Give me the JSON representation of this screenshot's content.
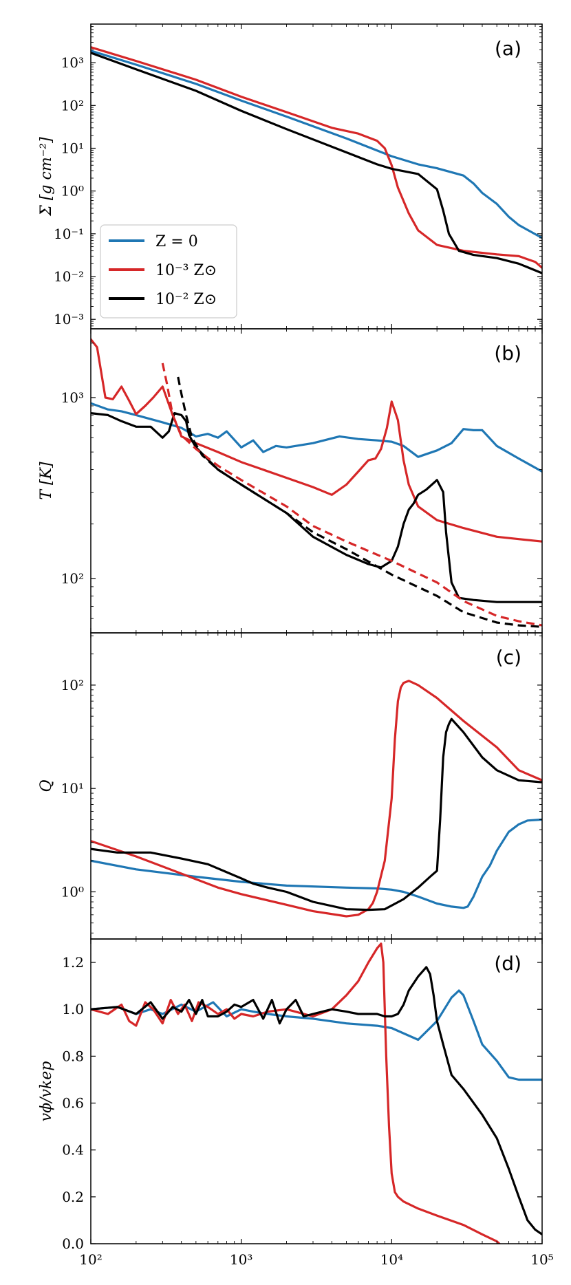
{
  "colors": {
    "zero": "#1f77b4",
    "m3": "#d62728",
    "m2": "#000000"
  },
  "legend": [
    {
      "key": "zero",
      "label": "Z = 0"
    },
    {
      "key": "m3",
      "label": "10⁻³ Z⊙"
    },
    {
      "key": "m2",
      "label": "10⁻² Z⊙"
    }
  ],
  "x_ticks": [
    "10²",
    "10³",
    "10⁴",
    "10⁵"
  ],
  "chart_data": [
    {
      "panel": "(a)",
      "type": "line",
      "ylabel": "Σ [g cm⁻²]",
      "yscale": "log",
      "xlim": [
        100,
        100000
      ],
      "ylim": [
        0.0006,
        8000
      ],
      "y_ticks": [
        "10⁻³",
        "10⁻²",
        "10⁻¹",
        "10⁰",
        "10¹",
        "10²",
        "10³"
      ],
      "series": [
        {
          "key": "zero",
          "name": "Z = 0",
          "x": [
            100,
            200,
            500,
            1000,
            2000,
            5000,
            10000,
            15000,
            20000,
            30000,
            35000,
            40000,
            50000,
            60000,
            70000,
            100000
          ],
          "y": [
            1900,
            900,
            320,
            130,
            55,
            17,
            6.5,
            4.2,
            3.4,
            2.3,
            1.5,
            0.9,
            0.5,
            0.25,
            0.16,
            0.08
          ]
        },
        {
          "key": "m3",
          "name": "10⁻³ Z⊙",
          "x": [
            100,
            200,
            500,
            1000,
            2000,
            4000,
            6000,
            8000,
            9000,
            10000,
            11000,
            13000,
            15000,
            20000,
            30000,
            50000,
            70000,
            90000,
            100000
          ],
          "y": [
            2300,
            1100,
            400,
            160,
            70,
            30,
            22,
            15,
            10,
            4,
            1.2,
            0.3,
            0.12,
            0.055,
            0.04,
            0.033,
            0.03,
            0.022,
            0.016
          ]
        },
        {
          "key": "m2",
          "name": "10⁻² Z⊙",
          "x": [
            100,
            200,
            500,
            1000,
            2000,
            5000,
            8000,
            10000,
            15000,
            20000,
            22000,
            24000,
            28000,
            35000,
            50000,
            70000,
            100000
          ],
          "y": [
            1700,
            700,
            220,
            75,
            28,
            8,
            4.2,
            3.3,
            2.5,
            1.1,
            0.35,
            0.1,
            0.04,
            0.032,
            0.027,
            0.02,
            0.012
          ]
        }
      ]
    },
    {
      "panel": "(b)",
      "type": "line",
      "ylabel": "T [K]",
      "yscale": "log",
      "xlim": [
        100,
        100000
      ],
      "ylim": [
        50,
        2400
      ],
      "y_ticks": [
        "10²",
        "10³"
      ],
      "series": [
        {
          "key": "zero",
          "name": "Z = 0",
          "x": [
            100,
            130,
            160,
            200,
            300,
            400,
            500,
            600,
            700,
            800,
            1000,
            1200,
            1400,
            1700,
            2000,
            3000,
            4500,
            6000,
            8000,
            10000,
            12000,
            15000,
            20000,
            25000,
            30000,
            35000,
            40000,
            50000,
            70000,
            100000
          ],
          "y": [
            930,
            860,
            840,
            800,
            730,
            680,
            610,
            630,
            600,
            650,
            530,
            580,
            500,
            540,
            530,
            560,
            610,
            590,
            580,
            570,
            540,
            470,
            510,
            560,
            670,
            660,
            660,
            540,
            460,
            390
          ]
        },
        {
          "key": "m3",
          "name": "10⁻³ Z⊙",
          "x": [
            100,
            110,
            125,
            140,
            160,
            180,
            200,
            230,
            260,
            300,
            350,
            400,
            500,
            700,
            1000,
            2000,
            3000,
            4000,
            5000,
            6000,
            7000,
            7800,
            8500,
            9300,
            10000,
            11000,
            12000,
            13000,
            15000,
            20000,
            30000,
            50000,
            70000,
            100000
          ],
          "y": [
            2100,
            1900,
            1000,
            980,
            1150,
            960,
            810,
            900,
            1000,
            1150,
            800,
            610,
            560,
            500,
            440,
            360,
            320,
            290,
            330,
            390,
            450,
            460,
            520,
            680,
            950,
            750,
            450,
            330,
            250,
            210,
            190,
            170,
            165,
            160
          ]
        },
        {
          "key": "m2",
          "name": "10⁻² Z⊙",
          "x": [
            100,
            130,
            160,
            200,
            250,
            300,
            330,
            360,
            400,
            430,
            450,
            500,
            700,
            1000,
            2000,
            3000,
            5000,
            7000,
            8500,
            10000,
            11000,
            12000,
            13000,
            14000,
            15000,
            17000,
            20000,
            22000,
            23000,
            25000,
            28000,
            35000,
            50000,
            70000,
            100000
          ],
          "y": [
            820,
            800,
            740,
            690,
            690,
            600,
            650,
            820,
            800,
            740,
            620,
            530,
            400,
            330,
            230,
            170,
            135,
            120,
            115,
            125,
            150,
            200,
            240,
            260,
            290,
            310,
            350,
            300,
            180,
            95,
            78,
            76,
            74,
            74,
            74
          ]
        },
        {
          "key": "m3",
          "name": "10⁻³ Z⊙ (dashed)",
          "style": "dashed",
          "x": [
            300,
            320,
            350,
            400,
            500,
            700,
            1000,
            2000,
            3000,
            5000,
            10000,
            20000,
            30000,
            50000,
            70000,
            100000
          ],
          "y": [
            1550,
            1200,
            800,
            620,
            520,
            420,
            350,
            250,
            195,
            160,
            125,
            95,
            75,
            62,
            58,
            55
          ]
        },
        {
          "key": "m2",
          "name": "10⁻² Z⊙ (dashed)",
          "style": "dashed",
          "x": [
            380,
            400,
            430,
            470,
            550,
            700,
            1000,
            2000,
            3000,
            5000,
            10000,
            20000,
            30000,
            50000,
            70000,
            100000
          ],
          "y": [
            1300,
            1050,
            800,
            600,
            480,
            400,
            330,
            230,
            180,
            145,
            105,
            80,
            65,
            57,
            55,
            54
          ]
        }
      ]
    },
    {
      "panel": "(c)",
      "type": "line",
      "ylabel": "Q",
      "yscale": "log",
      "xlim": [
        100,
        100000
      ],
      "ylim": [
        0.35,
        320
      ],
      "y_ticks": [
        "10⁰",
        "10¹",
        "10²"
      ],
      "series": [
        {
          "key": "zero",
          "name": "Z = 0",
          "x": [
            100,
            200,
            500,
            1000,
            2000,
            5000,
            8000,
            10000,
            12000,
            15000,
            20000,
            25000,
            30000,
            32000,
            35000,
            40000,
            45000,
            50000,
            60000,
            70000,
            80000,
            100000
          ],
          "y": [
            2.0,
            1.65,
            1.4,
            1.25,
            1.15,
            1.1,
            1.08,
            1.05,
            1.0,
            0.9,
            0.77,
            0.72,
            0.7,
            0.72,
            0.9,
            1.4,
            1.8,
            2.5,
            3.8,
            4.5,
            4.9,
            5.0
          ]
        },
        {
          "key": "m3",
          "name": "10⁻³ Z⊙",
          "x": [
            100,
            200,
            400,
            700,
            1000,
            2000,
            3000,
            5000,
            6000,
            7000,
            7500,
            8000,
            9000,
            10000,
            10500,
            11000,
            11500,
            12000,
            13000,
            15000,
            20000,
            30000,
            50000,
            70000,
            100000
          ],
          "y": [
            3.1,
            2.2,
            1.5,
            1.1,
            0.95,
            0.75,
            0.65,
            0.58,
            0.6,
            0.68,
            0.78,
            1.0,
            2.0,
            8.0,
            30.0,
            70.0,
            95.0,
            105.0,
            110.0,
            100.0,
            75.0,
            45.0,
            25.0,
            15.0,
            12.0
          ]
        },
        {
          "key": "m2",
          "name": "10⁻² Z⊙",
          "x": [
            100,
            150,
            250,
            400,
            600,
            800,
            1000,
            1200,
            1500,
            2000,
            3000,
            5000,
            7000,
            9000,
            12000,
            15000,
            18000,
            20000,
            21000,
            22000,
            23000,
            24000,
            25000,
            30000,
            40000,
            50000,
            70000,
            100000
          ],
          "y": [
            2.6,
            2.4,
            2.4,
            2.1,
            1.85,
            1.55,
            1.35,
            1.2,
            1.1,
            1.0,
            0.8,
            0.68,
            0.67,
            0.68,
            0.85,
            1.1,
            1.4,
            1.6,
            5.0,
            20.0,
            35.0,
            42.0,
            47.0,
            35.0,
            20.0,
            15.0,
            12.0,
            11.5
          ]
        }
      ]
    },
    {
      "panel": "(d)",
      "type": "line",
      "ylabel": "vϕ/vkep",
      "yscale": "linear",
      "xlim": [
        100,
        100000
      ],
      "ylim": [
        0,
        1.3
      ],
      "y_ticks": [
        "0.0",
        "0.2",
        "0.4",
        "0.6",
        "0.8",
        "1.0",
        "1.2"
      ],
      "y_tick_values": [
        0,
        0.2,
        0.4,
        0.6,
        0.8,
        1.0,
        1.2
      ],
      "series": [
        {
          "key": "zero",
          "name": "Z = 0",
          "x": [
            100,
            150,
            200,
            250,
            300,
            400,
            500,
            650,
            800,
            1000,
            1200,
            1500,
            2000,
            3000,
            5000,
            8000,
            10000,
            15000,
            20000,
            25000,
            28000,
            30000,
            35000,
            40000,
            50000,
            60000,
            70000,
            100000
          ],
          "y": [
            1.0,
            1.01,
            0.98,
            1.0,
            0.98,
            1.02,
            0.99,
            1.03,
            0.97,
            1.0,
            0.99,
            0.98,
            0.97,
            0.96,
            0.94,
            0.93,
            0.92,
            0.87,
            0.95,
            1.05,
            1.08,
            1.06,
            0.95,
            0.85,
            0.78,
            0.71,
            0.7,
            0.7
          ]
        },
        {
          "key": "m3",
          "name": "10⁻³ Z⊙",
          "x": [
            100,
            130,
            160,
            180,
            200,
            230,
            260,
            300,
            340,
            380,
            420,
            470,
            520,
            600,
            700,
            800,
            900,
            1000,
            1200,
            1500,
            2000,
            3000,
            4000,
            5000,
            6000,
            7000,
            8000,
            8500,
            8800,
            9200,
            9600,
            10000,
            10500,
            11000,
            12000,
            15000,
            20000,
            30000,
            40000,
            50000,
            52000
          ],
          "y": [
            1.0,
            0.98,
            1.02,
            0.95,
            0.93,
            1.03,
            1.0,
            0.94,
            1.04,
            0.98,
            1.02,
            0.95,
            1.03,
            1.01,
            0.98,
            1.0,
            0.96,
            0.98,
            0.97,
            0.99,
            1.0,
            0.97,
            1.0,
            1.06,
            1.12,
            1.2,
            1.26,
            1.28,
            1.2,
            0.8,
            0.5,
            0.3,
            0.22,
            0.2,
            0.18,
            0.15,
            0.12,
            0.08,
            0.04,
            0.01,
            0.0
          ]
        },
        {
          "key": "m2",
          "name": "10⁻² Z⊙",
          "x": [
            100,
            150,
            200,
            250,
            300,
            350,
            400,
            450,
            500,
            550,
            600,
            700,
            800,
            900,
            1000,
            1200,
            1400,
            1600,
            1800,
            2000,
            2300,
            2600,
            3000,
            4000,
            5000,
            6000,
            7000,
            8000,
            9000,
            10000,
            11000,
            12000,
            13000,
            15000,
            17000,
            18000,
            19000,
            20000,
            22000,
            25000,
            30000,
            40000,
            50000,
            60000,
            70000,
            80000,
            90000,
            100000
          ],
          "y": [
            1.0,
            1.01,
            0.98,
            1.03,
            0.96,
            1.01,
            0.99,
            1.04,
            0.98,
            1.04,
            0.97,
            0.97,
            0.99,
            1.02,
            1.01,
            1.04,
            0.96,
            1.04,
            0.94,
            1.0,
            1.04,
            0.97,
            0.98,
            1.0,
            0.99,
            0.98,
            0.98,
            0.98,
            0.97,
            0.97,
            0.98,
            1.02,
            1.08,
            1.14,
            1.18,
            1.15,
            1.06,
            0.95,
            0.85,
            0.72,
            0.66,
            0.55,
            0.45,
            0.32,
            0.2,
            0.1,
            0.06,
            0.04
          ]
        }
      ]
    }
  ]
}
